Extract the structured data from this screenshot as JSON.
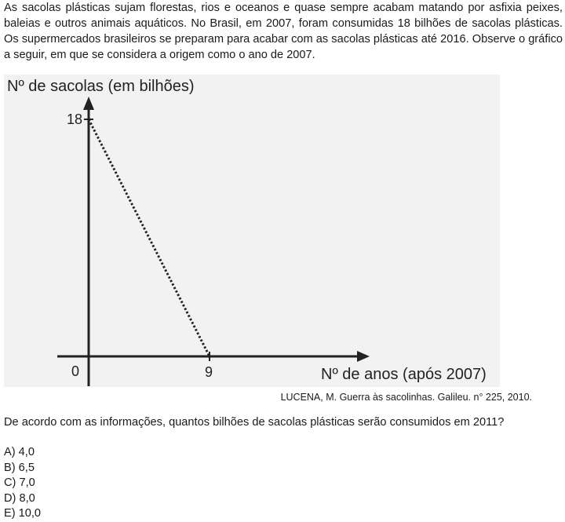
{
  "intro": "As sacolas plásticas sujam florestas, rios e oceanos e quase sempre acabam matando por asfixia peixes, baleias e outros animais aquáticos. No Brasil, em 2007, foram consumidas 18 bilhões de sacolas plásticas. Os supermercados brasileiros se preparam para acabar com as sacolas plásticas até 2016. Observe o gráfico a seguir, em que se considera a origem como o ano de 2007.",
  "chart_data": {
    "type": "line",
    "ylabel": "Nº de sacolas (em bilhões)",
    "xlabel": "Nº de anos (após 2007)",
    "origin_label": "0",
    "x_ticks": [
      "9"
    ],
    "y_ticks": [
      "18"
    ],
    "series": [
      {
        "values": [
          [
            0,
            18
          ],
          [
            9,
            0
          ]
        ],
        "style": "dotted"
      }
    ],
    "xlim": [
      0,
      9
    ],
    "ylim": [
      0,
      18
    ],
    "grid": false,
    "background": "#f2f2f2",
    "line_color": "#222222"
  },
  "source": "LUCENA, M. Guerra às sacolinhas. Galileu. n° 225, 2010.",
  "question": "De acordo com as informações, quantos bilhões de sacolas plásticas serão consumidos em 2011?",
  "options": [
    "A) 4,0",
    "B) 6,5",
    "C) 7,0",
    "D) 8,0",
    "E) 10,0"
  ]
}
